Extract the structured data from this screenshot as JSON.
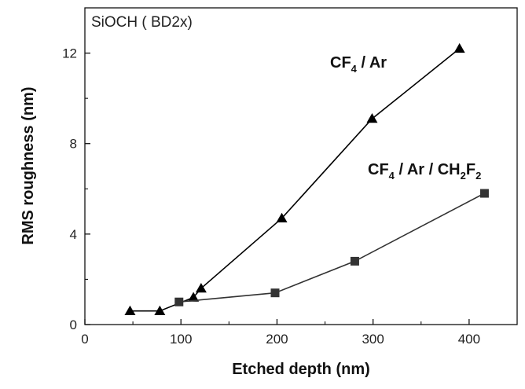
{
  "chart_data": {
    "type": "line",
    "annotation": "SiOCH ( BD2x)",
    "xlabel": "Etched depth (nm)",
    "ylabel": "RMS roughness (nm)",
    "xlim": [
      0,
      450
    ],
    "ylim": [
      0,
      14
    ],
    "xticks": [
      0,
      100,
      200,
      300,
      400
    ],
    "yticks": [
      0,
      4,
      8,
      12
    ],
    "grid": false,
    "legend": "none",
    "series": [
      {
        "name": "CF4 / Ar",
        "label_parts": {
          "a": "CF",
          "b": "4",
          "c": " / Ar"
        },
        "marker": "triangle",
        "color": "#000000",
        "x": [
          47,
          78,
          113,
          121,
          205,
          299,
          390
        ],
        "y": [
          0.6,
          0.6,
          1.2,
          1.6,
          4.7,
          9.1,
          12.2
        ]
      },
      {
        "name": "CF4 / Ar / CH2F2",
        "label_parts": {
          "a": "CF",
          "b": "4",
          "c": " / Ar / CH",
          "d": "2",
          "e": "F",
          "f": "2"
        },
        "marker": "square",
        "color": "#333333",
        "x": [
          98,
          198,
          281,
          416
        ],
        "y": [
          1.0,
          1.4,
          2.8,
          5.8
        ]
      }
    ]
  }
}
